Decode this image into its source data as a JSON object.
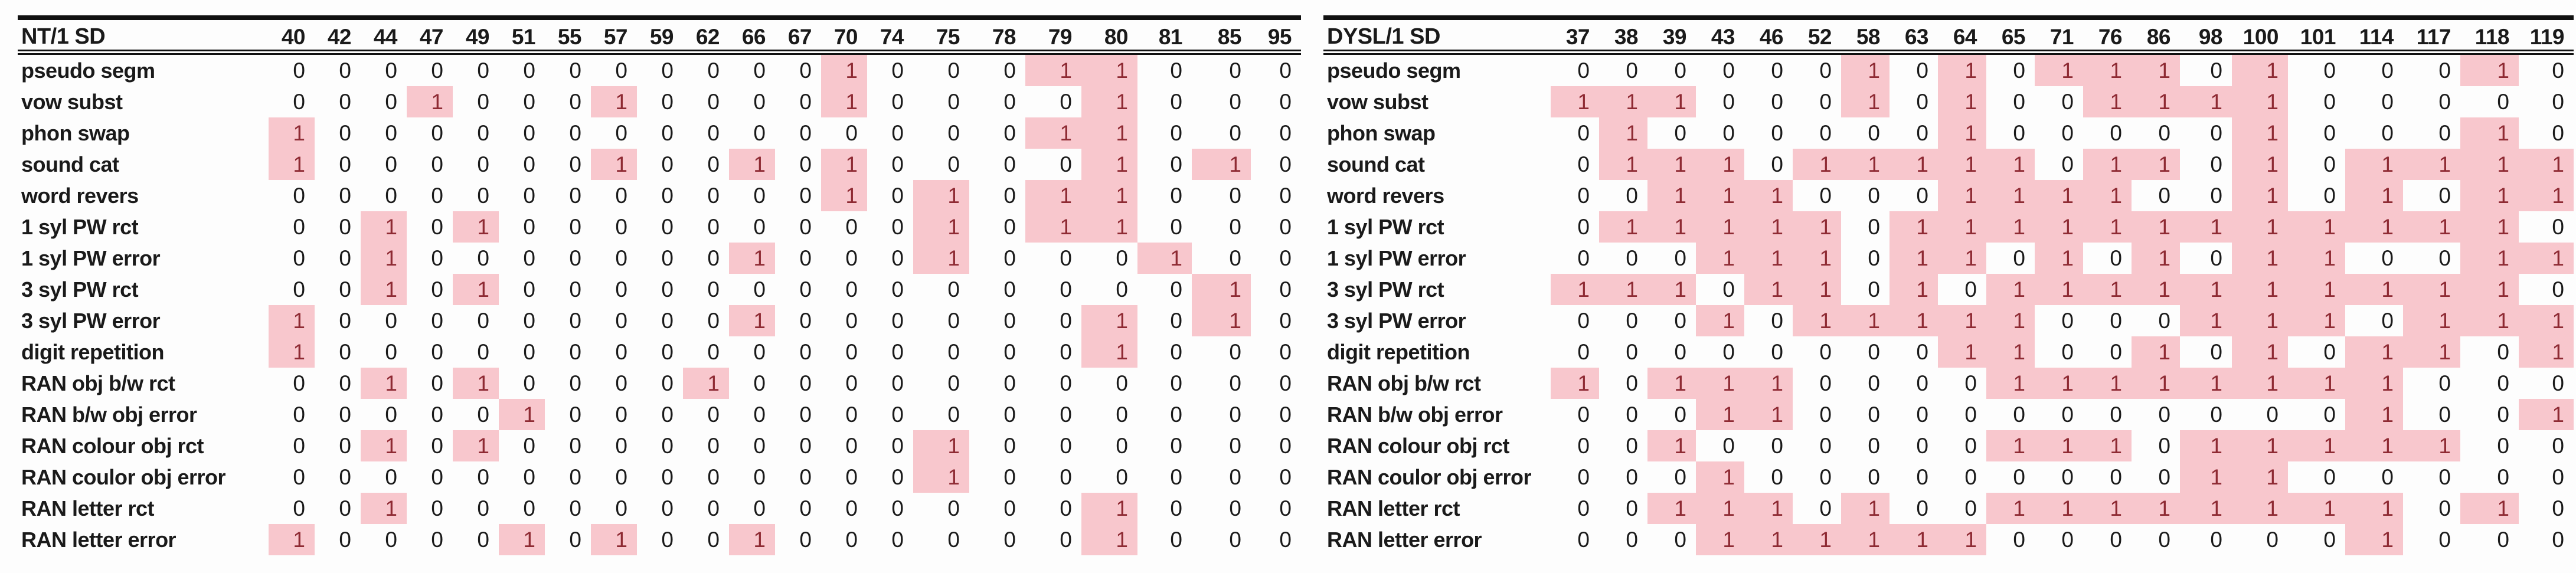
{
  "page": {
    "background": "#fdfdfd",
    "highlight_fill": "#f8c7cd",
    "highlight_text": "#8e2a33",
    "text_color": "#1a1a1a"
  },
  "left_table": {
    "title": "NT/1 SD",
    "columns": [
      "40",
      "42",
      "44",
      "47",
      "49",
      "51",
      "55",
      "57",
      "59",
      "62",
      "66",
      "67",
      "70",
      "74",
      "75",
      "78",
      "79",
      "80",
      "81",
      "85",
      "95"
    ],
    "rows": [
      {
        "label": "pseudo segm",
        "values": [
          0,
          0,
          0,
          0,
          0,
          0,
          0,
          0,
          0,
          0,
          0,
          0,
          1,
          0,
          0,
          0,
          1,
          1,
          0,
          0,
          0
        ]
      },
      {
        "label": "vow subst",
        "values": [
          0,
          0,
          0,
          1,
          0,
          0,
          0,
          1,
          0,
          0,
          0,
          0,
          1,
          0,
          0,
          0,
          0,
          1,
          0,
          0,
          0
        ]
      },
      {
        "label": "phon swap",
        "values": [
          1,
          0,
          0,
          0,
          0,
          0,
          0,
          0,
          0,
          0,
          0,
          0,
          0,
          0,
          0,
          0,
          1,
          1,
          0,
          0,
          0
        ]
      },
      {
        "label": "sound cat",
        "values": [
          1,
          0,
          0,
          0,
          0,
          0,
          0,
          1,
          0,
          0,
          1,
          0,
          1,
          0,
          0,
          0,
          0,
          1,
          0,
          1,
          0
        ]
      },
      {
        "label": "word revers",
        "values": [
          0,
          0,
          0,
          0,
          0,
          0,
          0,
          0,
          0,
          0,
          0,
          0,
          1,
          0,
          1,
          0,
          1,
          1,
          0,
          0,
          0
        ]
      },
      {
        "label": "1 syl PW rct",
        "values": [
          0,
          0,
          1,
          0,
          1,
          0,
          0,
          0,
          0,
          0,
          0,
          0,
          0,
          0,
          1,
          0,
          1,
          1,
          0,
          0,
          0
        ]
      },
      {
        "label": "1 syl PW error",
        "values": [
          0,
          0,
          1,
          0,
          0,
          0,
          0,
          0,
          0,
          0,
          1,
          0,
          0,
          0,
          1,
          0,
          0,
          0,
          1,
          0,
          0
        ]
      },
      {
        "label": "3 syl PW rct",
        "values": [
          0,
          0,
          1,
          0,
          1,
          0,
          0,
          0,
          0,
          0,
          0,
          0,
          0,
          0,
          0,
          0,
          0,
          0,
          0,
          1,
          0
        ]
      },
      {
        "label": "3 syl PW error",
        "values": [
          1,
          0,
          0,
          0,
          0,
          0,
          0,
          0,
          0,
          0,
          1,
          0,
          0,
          0,
          0,
          0,
          0,
          1,
          0,
          1,
          0
        ]
      },
      {
        "label": "digit repetition",
        "values": [
          1,
          0,
          0,
          0,
          0,
          0,
          0,
          0,
          0,
          0,
          0,
          0,
          0,
          0,
          0,
          0,
          0,
          1,
          0,
          0,
          0
        ]
      },
      {
        "label": "RAN obj b/w rct",
        "values": [
          0,
          0,
          1,
          0,
          1,
          0,
          0,
          0,
          0,
          1,
          0,
          0,
          0,
          0,
          0,
          0,
          0,
          0,
          0,
          0,
          0
        ]
      },
      {
        "label": "RAN b/w obj error",
        "values": [
          0,
          0,
          0,
          0,
          0,
          1,
          0,
          0,
          0,
          0,
          0,
          0,
          0,
          0,
          0,
          0,
          0,
          0,
          0,
          0,
          0
        ]
      },
      {
        "label": "RAN colour obj rct",
        "values": [
          0,
          0,
          1,
          0,
          1,
          0,
          0,
          0,
          0,
          0,
          0,
          0,
          0,
          0,
          1,
          0,
          0,
          0,
          0,
          0,
          0
        ]
      },
      {
        "label": "RAN coulor obj error",
        "values": [
          0,
          0,
          0,
          0,
          0,
          0,
          0,
          0,
          0,
          0,
          0,
          0,
          0,
          0,
          1,
          0,
          0,
          0,
          0,
          0,
          0
        ]
      },
      {
        "label": "RAN letter rct",
        "values": [
          0,
          0,
          1,
          0,
          0,
          0,
          0,
          0,
          0,
          0,
          0,
          0,
          0,
          0,
          0,
          0,
          0,
          1,
          0,
          0,
          0
        ]
      },
      {
        "label": "RAN letter error",
        "values": [
          1,
          0,
          0,
          0,
          0,
          1,
          0,
          1,
          0,
          0,
          1,
          0,
          0,
          0,
          0,
          0,
          0,
          1,
          0,
          0,
          0
        ]
      }
    ]
  },
  "right_table": {
    "title": "DYSL/1 SD",
    "columns": [
      "37",
      "38",
      "39",
      "43",
      "46",
      "52",
      "58",
      "63",
      "64",
      "65",
      "71",
      "76",
      "86",
      "98",
      "100",
      "101",
      "114",
      "117",
      "118",
      "119"
    ],
    "rows": [
      {
        "label": "pseudo segm",
        "values": [
          0,
          0,
          0,
          0,
          0,
          0,
          1,
          0,
          1,
          0,
          1,
          1,
          1,
          0,
          1,
          0,
          0,
          0,
          1,
          0
        ]
      },
      {
        "label": "vow subst",
        "values": [
          1,
          1,
          1,
          0,
          0,
          0,
          1,
          0,
          1,
          0,
          0,
          1,
          1,
          1,
          1,
          0,
          0,
          0,
          0,
          0
        ]
      },
      {
        "label": "phon swap",
        "values": [
          0,
          1,
          0,
          0,
          0,
          0,
          0,
          0,
          1,
          0,
          0,
          0,
          0,
          0,
          1,
          0,
          0,
          0,
          1,
          0
        ]
      },
      {
        "label": "sound cat",
        "values": [
          0,
          1,
          1,
          1,
          0,
          1,
          1,
          1,
          1,
          1,
          0,
          1,
          1,
          0,
          1,
          0,
          1,
          1,
          1,
          1
        ]
      },
      {
        "label": "word revers",
        "values": [
          0,
          0,
          1,
          1,
          1,
          0,
          0,
          0,
          1,
          1,
          1,
          1,
          0,
          0,
          1,
          0,
          1,
          0,
          1,
          1
        ]
      },
      {
        "label": "1 syl PW rct",
        "values": [
          0,
          1,
          1,
          1,
          1,
          1,
          0,
          1,
          1,
          1,
          1,
          1,
          1,
          1,
          1,
          1,
          1,
          1,
          1,
          0
        ]
      },
      {
        "label": "1 syl PW error",
        "values": [
          0,
          0,
          0,
          1,
          1,
          1,
          0,
          1,
          1,
          0,
          1,
          0,
          1,
          0,
          1,
          1,
          0,
          0,
          1,
          1
        ]
      },
      {
        "label": "3 syl PW rct",
        "values": [
          1,
          1,
          1,
          0,
          1,
          1,
          0,
          1,
          0,
          1,
          1,
          1,
          1,
          1,
          1,
          1,
          1,
          1,
          1,
          0
        ]
      },
      {
        "label": "3 syl PW error",
        "values": [
          0,
          0,
          0,
          1,
          0,
          1,
          1,
          1,
          1,
          1,
          0,
          0,
          0,
          1,
          1,
          1,
          0,
          1,
          1,
          1
        ]
      },
      {
        "label": "digit repetition",
        "values": [
          0,
          0,
          0,
          0,
          0,
          0,
          0,
          0,
          1,
          1,
          0,
          0,
          1,
          0,
          1,
          0,
          1,
          1,
          0,
          1
        ]
      },
      {
        "label": "RAN obj b/w rct",
        "values": [
          1,
          0,
          1,
          1,
          1,
          0,
          0,
          0,
          0,
          1,
          1,
          1,
          1,
          1,
          1,
          1,
          1,
          0,
          0,
          0
        ]
      },
      {
        "label": "RAN b/w obj error",
        "values": [
          0,
          0,
          0,
          1,
          1,
          0,
          0,
          0,
          0,
          0,
          0,
          0,
          0,
          0,
          0,
          0,
          1,
          0,
          0,
          1
        ]
      },
      {
        "label": "RAN colour obj rct",
        "values": [
          0,
          0,
          1,
          0,
          0,
          0,
          0,
          0,
          0,
          1,
          1,
          1,
          0,
          1,
          1,
          1,
          1,
          1,
          0,
          0
        ]
      },
      {
        "label": "RAN coulor obj error",
        "values": [
          0,
          0,
          0,
          1,
          0,
          0,
          0,
          0,
          0,
          0,
          0,
          0,
          0,
          1,
          1,
          0,
          0,
          0,
          0,
          0
        ]
      },
      {
        "label": "RAN letter rct",
        "values": [
          0,
          0,
          1,
          1,
          1,
          0,
          1,
          0,
          0,
          1,
          1,
          1,
          1,
          1,
          1,
          1,
          1,
          0,
          1,
          0
        ]
      },
      {
        "label": "RAN letter error",
        "values": [
          0,
          0,
          0,
          1,
          1,
          1,
          1,
          1,
          1,
          0,
          0,
          0,
          0,
          0,
          0,
          0,
          1,
          0,
          0,
          0
        ]
      }
    ]
  }
}
